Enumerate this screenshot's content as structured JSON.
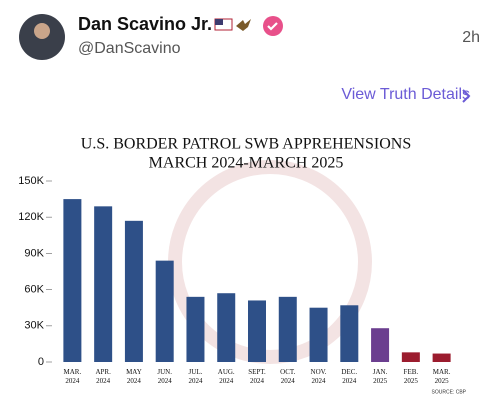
{
  "post": {
    "name": "Dan Scavino Jr.",
    "handle": "@DanScavino",
    "time": "2h",
    "details_link": "View Truth Details"
  },
  "chart_data": {
    "type": "bar",
    "title": "U.S. BORDER PATROL SWB APPREHENSIONS",
    "subtitle": "MARCH 2024-MARCH 2025",
    "source": "SOURCE: CBP",
    "categories": [
      "MAR. 2024",
      "APR. 2024",
      "MAY 2024",
      "JUN. 2024",
      "JUL. 2024",
      "AUG. 2024",
      "SEPT. 2024",
      "OCT. 2024",
      "NOV. 2024",
      "DEC. 2024",
      "JAN. 2025",
      "FEB. 2025",
      "MAR. 2025"
    ],
    "values": [
      135000,
      129000,
      117000,
      84000,
      54000,
      57000,
      51000,
      54000,
      45000,
      47000,
      28000,
      8000,
      7000
    ],
    "colors": [
      "#2e5088",
      "#2e5088",
      "#2e5088",
      "#2e5088",
      "#2e5088",
      "#2e5088",
      "#2e5088",
      "#2e5088",
      "#2e5088",
      "#2e5088",
      "#6b3e8f",
      "#9b1c2e",
      "#9b1c2e"
    ],
    "ylim": [
      0,
      150000
    ],
    "yticks": [
      0,
      {
        "value": 30000,
        "label": "30K"
      },
      {
        "value": 60000,
        "label": "60K"
      },
      {
        "value": 90000,
        "label": "90K"
      },
      {
        "value": 120000,
        "label": "120K"
      },
      {
        "value": 150000,
        "label": "150K"
      }
    ],
    "grid": false
  }
}
